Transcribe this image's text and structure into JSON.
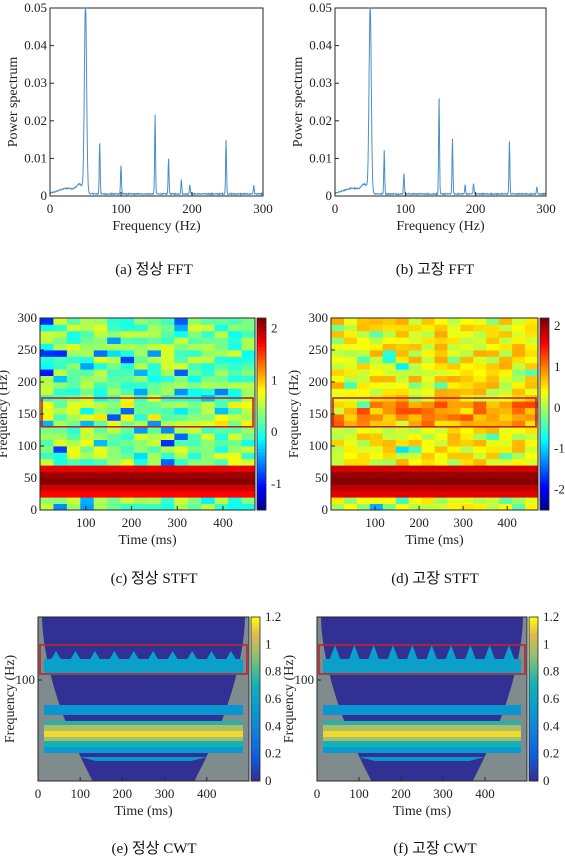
{
  "colors": {
    "spectrum_line": "#4a90c8",
    "highlight_box": "#c0232c",
    "axis": "#262626",
    "cwt_background": "#808b8e"
  },
  "captions": [
    "(a) 정상 FFT",
    "(b) 고장 FFT",
    "(c) 정상 STFT",
    "(d) 고장 STFT",
    "(e) 정상 CWT",
    "(f) 고장 CWT"
  ],
  "chart_data": [
    {
      "type": "line",
      "panel": "a",
      "xlabel": "Frequency (Hz)",
      "ylabel": "Power spectrum",
      "xlim": [
        0,
        300
      ],
      "ylim": [
        0,
        0.05
      ],
      "xticks": [
        "0",
        "100",
        "200",
        "300"
      ],
      "yticks": [
        "0",
        "0.01",
        "0.02",
        "0.03",
        "0.04",
        "0.05"
      ],
      "peaks": [
        {
          "x": 50,
          "y": 0.05
        },
        {
          "x": 70,
          "y": 0.0135
        },
        {
          "x": 100,
          "y": 0.0075
        },
        {
          "x": 148,
          "y": 0.021
        },
        {
          "x": 167,
          "y": 0.0095
        },
        {
          "x": 185,
          "y": 0.0038
        },
        {
          "x": 197,
          "y": 0.0025
        },
        {
          "x": 248,
          "y": 0.0143
        },
        {
          "x": 287,
          "y": 0.0022
        }
      ]
    },
    {
      "type": "line",
      "panel": "b",
      "xlabel": "Frequency (Hz)",
      "ylabel": "Power spectrum",
      "xlim": [
        0,
        300
      ],
      "ylim": [
        0,
        0.05
      ],
      "xticks": [
        "0",
        "100",
        "200",
        "300"
      ],
      "yticks": [
        "0",
        "0.01",
        "0.02",
        "0.03",
        "0.04",
        "0.05"
      ],
      "peaks": [
        {
          "x": 50,
          "y": 0.05
        },
        {
          "x": 70,
          "y": 0.0115
        },
        {
          "x": 98,
          "y": 0.0055
        },
        {
          "x": 148,
          "y": 0.0255
        },
        {
          "x": 167,
          "y": 0.0145
        },
        {
          "x": 185,
          "y": 0.0025
        },
        {
          "x": 197,
          "y": 0.0028
        },
        {
          "x": 248,
          "y": 0.014
        },
        {
          "x": 287,
          "y": 0.0018
        }
      ]
    },
    {
      "type": "heatmap",
      "panel": "c",
      "xlabel": "Time (ms)",
      "ylabel": "Frequency (Hz)",
      "xlim": [
        0,
        470
      ],
      "ylim": [
        0,
        300
      ],
      "xticks": [
        "100",
        "200",
        "300",
        "400"
      ],
      "yticks": [
        "0",
        "50",
        "100",
        "150",
        "200",
        "250",
        "300"
      ],
      "colorbar": {
        "ticks": [
          "2",
          "1",
          "0",
          "-1"
        ],
        "range": [
          -1.5,
          2.2
        ]
      },
      "highlight": {
        "freq_range": [
          130,
          175
        ]
      },
      "band_levels": [
        {
          "freq": [
            0,
            20
          ],
          "level": 0.25
        },
        {
          "freq": [
            20,
            75
          ],
          "level": 2.0
        },
        {
          "freq": [
            75,
            130
          ],
          "level": 0.35
        },
        {
          "freq": [
            130,
            175
          ],
          "level": 0.55
        },
        {
          "freq": [
            175,
            300
          ],
          "level": 0.3
        }
      ]
    },
    {
      "type": "heatmap",
      "panel": "d",
      "xlabel": "Time (ms)",
      "ylabel": "Frequency (Hz)",
      "xlim": [
        0,
        470
      ],
      "ylim": [
        0,
        300
      ],
      "xticks": [
        "100",
        "200",
        "300",
        "400"
      ],
      "yticks": [
        "0",
        "50",
        "100",
        "150",
        "200",
        "250",
        "300"
      ],
      "colorbar": {
        "ticks": [
          "2",
          "1",
          "0",
          "-1",
          "-2"
        ],
        "range": [
          -2.5,
          2.2
        ]
      },
      "highlight": {
        "freq_range": [
          130,
          175
        ]
      },
      "band_levels": [
        {
          "freq": [
            0,
            20
          ],
          "level": 0.2
        },
        {
          "freq": [
            20,
            75
          ],
          "level": 2.0
        },
        {
          "freq": [
            75,
            130
          ],
          "level": 0.4
        },
        {
          "freq": [
            130,
            175
          ],
          "level": 0.9
        },
        {
          "freq": [
            175,
            300
          ],
          "level": 0.45
        }
      ]
    },
    {
      "type": "heatmap",
      "panel": "e",
      "xlabel": "Time (ms)",
      "ylabel": "Frequency (Hz)",
      "xlim": [
        0,
        500
      ],
      "xticks": [
        "0",
        "100",
        "200",
        "300",
        "400"
      ],
      "yticks": [
        "100"
      ],
      "colorbar": {
        "ticks": [
          "1.2",
          "1",
          "0.8",
          "0.6",
          "0.4",
          "0.2",
          "0"
        ],
        "range": [
          0,
          1.2
        ]
      }
    },
    {
      "type": "heatmap",
      "panel": "f",
      "xlabel": "Time (ms)",
      "ylabel": "Frequency (Hz)",
      "xlim": [
        0,
        500
      ],
      "xticks": [
        "0",
        "100",
        "200",
        "300",
        "400"
      ],
      "yticks": [
        "100"
      ],
      "colorbar": {
        "ticks": [
          "1.2",
          "1",
          "0.8",
          "0.6",
          "0.4",
          "0.2",
          "0"
        ],
        "range": [
          0,
          1.2
        ]
      }
    }
  ]
}
